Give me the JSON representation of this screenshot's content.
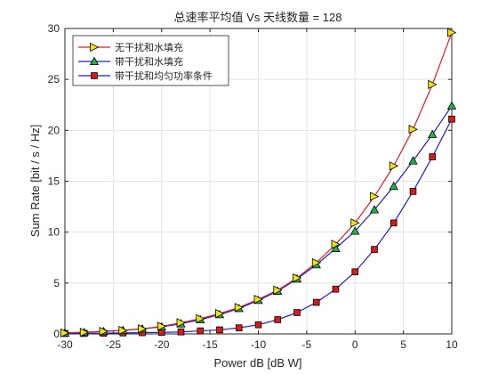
{
  "chart_data": {
    "type": "line",
    "title": "总速率平均值 Vs 天线数量 = 128",
    "xlabel": "Power dB [dB W]",
    "ylabel": "Sum Rate [bit / s / Hz]",
    "xlim": [
      -30,
      10
    ],
    "ylim": [
      0,
      30
    ],
    "xticks": [
      -30,
      -25,
      -20,
      -15,
      -10,
      -5,
      0,
      5,
      10
    ],
    "yticks": [
      0,
      5,
      10,
      15,
      20,
      25,
      30
    ],
    "grid": true,
    "legend_position": "top-left",
    "x": [
      -30,
      -28,
      -26,
      -24,
      -22,
      -20,
      -18,
      -16,
      -14,
      -12,
      -10,
      -8,
      -6,
      -4,
      -2,
      0,
      2,
      4,
      6,
      8,
      10
    ],
    "series": [
      {
        "name": "无干扰和水填充",
        "color": "#d62020",
        "marker": "triangle-right",
        "marker_color": "#f2e30c",
        "values": [
          0.1,
          0.15,
          0.25,
          0.35,
          0.5,
          0.75,
          1.1,
          1.5,
          2.0,
          2.6,
          3.4,
          4.3,
          5.5,
          7.0,
          8.8,
          10.9,
          13.5,
          16.5,
          20.1,
          24.5,
          29.6
        ]
      },
      {
        "name": "带干扰和水填充",
        "color": "#1f1fcf",
        "marker": "triangle-up",
        "marker_color": "#22b04b",
        "values": [
          0.1,
          0.15,
          0.25,
          0.35,
          0.5,
          0.7,
          1.0,
          1.4,
          1.9,
          2.5,
          3.3,
          4.2,
          5.4,
          6.8,
          8.4,
          10.1,
          12.2,
          14.5,
          17.0,
          19.6,
          22.4
        ]
      },
      {
        "name": "带干扰和均匀功率条件",
        "color": "#1f1fcf",
        "marker": "square",
        "marker_color": "#d71a1a",
        "values": [
          0.05,
          0.05,
          0.07,
          0.1,
          0.12,
          0.15,
          0.2,
          0.3,
          0.4,
          0.6,
          0.9,
          1.4,
          2.1,
          3.1,
          4.4,
          6.1,
          8.3,
          10.9,
          14.0,
          17.4,
          21.1
        ]
      }
    ]
  }
}
